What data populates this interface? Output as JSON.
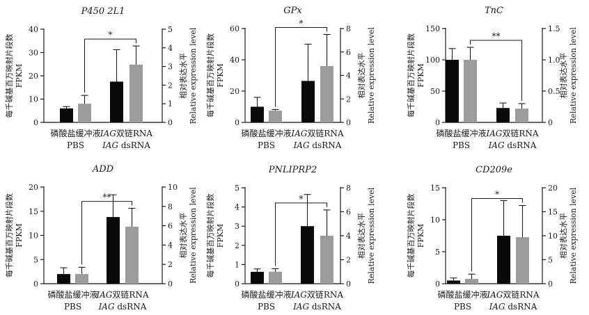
{
  "colors": {
    "black_bar": "#0a0a0a",
    "gray_bar": "#9b9b9b",
    "axis": "#1a1a1a"
  },
  "chart_data": [
    {
      "type": "bar",
      "title": "P450 2L1",
      "left_label_cn": "每千碱基百万映射片段数",
      "left_label_en": "FPKM",
      "right_label_cn": "相对表达水平",
      "right_label_en": "Relative expression level",
      "categories": [
        {
          "line1": "磷酸盐缓冲液",
          "line2": "PBS"
        },
        {
          "line1_prefix": "IAG",
          "line1_suffix": "双链RNA",
          "line2_prefix": "IAG",
          "line2_suffix": " dsRNA"
        }
      ],
      "ylim_left": [
        0,
        40
      ],
      "yticks_left": [
        "0",
        "10",
        "20",
        "30",
        "40"
      ],
      "ylim_right": [
        0,
        5
      ],
      "yticks_right": [
        "0",
        "1",
        "2",
        "3",
        "4",
        "5"
      ],
      "series": [
        {
          "name": "FPKM",
          "axis": "left",
          "color": "black",
          "values": [
            6,
            17.5
          ],
          "errors": [
            0.8,
            13.7
          ]
        },
        {
          "name": "Relative expression level",
          "axis": "right",
          "color": "gray",
          "values": [
            1.0,
            3.1
          ],
          "errors": [
            0.45,
            1.0
          ]
        }
      ],
      "significance": "*"
    },
    {
      "type": "bar",
      "title": "GPx",
      "left_label_cn": "每千碱基百万映射片段数",
      "left_label_en": "FPKM",
      "right_label_cn": "相对表达水平",
      "right_label_en": "Relative expression level",
      "categories": [
        {
          "line1": "磷酸盐缓冲液",
          "line2": "PBS"
        },
        {
          "line1_prefix": "IAG",
          "line1_suffix": "双链RNA",
          "line2_prefix": "IAG",
          "line2_suffix": " dsRNA"
        }
      ],
      "ylim_left": [
        0,
        60
      ],
      "yticks_left": [
        "0",
        "20",
        "40",
        "60"
      ],
      "ylim_right": [
        0,
        8
      ],
      "yticks_right": [
        "0",
        "2",
        "4",
        "6",
        "8"
      ],
      "series": [
        {
          "name": "FPKM",
          "axis": "left",
          "color": "black",
          "values": [
            10,
            26.5
          ],
          "errors": [
            6,
            23.5
          ]
        },
        {
          "name": "Relative expression level",
          "axis": "right",
          "color": "gray",
          "values": [
            1.0,
            4.8
          ],
          "errors": [
            0.1,
            2.7
          ]
        }
      ],
      "significance": "*"
    },
    {
      "type": "bar",
      "title": "TnC",
      "left_label_cn": "每千碱基百万映射片段数",
      "left_label_en": "FPKM",
      "right_label_cn": "相对表达水平",
      "right_label_en": "Relative expression level",
      "categories": [
        {
          "line1": "磷酸盐缓冲液",
          "line2": "PBS"
        },
        {
          "line1_prefix": "IAG",
          "line1_suffix": "双链RNA",
          "line2_prefix": "IAG",
          "line2_suffix": " dsRNA"
        }
      ],
      "ylim_left": [
        0,
        150
      ],
      "yticks_left": [
        "0",
        "50",
        "100",
        "150"
      ],
      "ylim_right": [
        0,
        1.5
      ],
      "yticks_right": [
        "0",
        "0.5",
        "1.0",
        "1.5"
      ],
      "series": [
        {
          "name": "FPKM",
          "axis": "left",
          "color": "black",
          "values": [
            100,
            23
          ],
          "errors": [
            18,
            8
          ]
        },
        {
          "name": "Relative expression level",
          "axis": "right",
          "color": "gray",
          "values": [
            1.0,
            0.22
          ],
          "errors": [
            0.2,
            0.08
          ]
        }
      ],
      "significance": "**"
    },
    {
      "type": "bar",
      "title": "ADD",
      "left_label_cn": "每千碱基百万映射片段数",
      "left_label_en": "FPKM",
      "right_label_cn": "相对表达水平",
      "right_label_en": "Relative expression level",
      "categories": [
        {
          "line1": "磷酸盐缓冲液",
          "line2": "PBS"
        },
        {
          "line1_prefix": "IAG",
          "line1_suffix": "双链RNA",
          "line2_prefix": "IAG",
          "line2_suffix": " dsRNA"
        }
      ],
      "ylim_left": [
        0,
        20
      ],
      "yticks_left": [
        "0",
        "5",
        "10",
        "15",
        "20"
      ],
      "ylim_right": [
        0,
        10
      ],
      "yticks_right": [
        "0",
        "2",
        "4",
        "6",
        "8",
        "10"
      ],
      "series": [
        {
          "name": "FPKM",
          "axis": "left",
          "color": "black",
          "values": [
            2.0,
            13.8
          ],
          "errors": [
            1.3,
            4.6
          ]
        },
        {
          "name": "Relative expression level",
          "axis": "right",
          "color": "gray",
          "values": [
            1.0,
            5.9
          ],
          "errors": [
            0.7,
            1.9
          ]
        }
      ],
      "significance": "**"
    },
    {
      "type": "bar",
      "title": "PNLIPRP2",
      "left_label_cn": "每千碱基百万映射片段数",
      "left_label_en": "FPKM",
      "right_label_cn": "相对表达水平",
      "right_label_en": "Relative expression level",
      "categories": [
        {
          "line1": "磷酸盐缓冲液",
          "line2": "PBS"
        },
        {
          "line1_prefix": "IAG",
          "line1_suffix": "双链RNA",
          "line2_prefix": "IAG",
          "line2_suffix": " dsRNA"
        }
      ],
      "ylim_left": [
        0,
        5
      ],
      "yticks_left": [
        "0",
        "1",
        "2",
        "3",
        "4",
        "5"
      ],
      "ylim_right": [
        0,
        8
      ],
      "yticks_right": [
        "0",
        "2",
        "4",
        "6",
        "8"
      ],
      "series": [
        {
          "name": "FPKM",
          "axis": "left",
          "color": "black",
          "values": [
            0.62,
            3.0
          ],
          "errors": [
            0.15,
            1.65
          ]
        },
        {
          "name": "Relative expression level",
          "axis": "right",
          "color": "gray",
          "values": [
            1.0,
            4.0
          ],
          "errors": [
            0.25,
            2.15
          ]
        }
      ],
      "significance": "*"
    },
    {
      "type": "bar",
      "title": "CD209e",
      "left_label_cn": "每千碱基百万映射片段数",
      "left_label_en": "FPKM",
      "right_label_cn": "相对表达水平",
      "right_label_en": "Relative expression level",
      "categories": [
        {
          "line1": "磷酸盐缓冲液",
          "line2": "PBS"
        },
        {
          "line1_prefix": "IAG",
          "line1_suffix": "双链RNA",
          "line2_prefix": "IAG",
          "line2_suffix": " dsRNA"
        }
      ],
      "ylim_left": [
        0,
        15
      ],
      "yticks_left": [
        "0",
        "5",
        "10",
        "15"
      ],
      "ylim_right": [
        0,
        20
      ],
      "yticks_right": [
        "0",
        "5",
        "10",
        "15",
        "20"
      ],
      "series": [
        {
          "name": "FPKM",
          "axis": "left",
          "color": "black",
          "values": [
            0.5,
            7.5
          ],
          "errors": [
            0.4,
            5.5
          ]
        },
        {
          "name": "Relative expression level",
          "axis": "right",
          "color": "gray",
          "values": [
            1.0,
            9.7
          ],
          "errors": [
            1.0,
            6.6
          ]
        }
      ],
      "significance": "*"
    }
  ]
}
